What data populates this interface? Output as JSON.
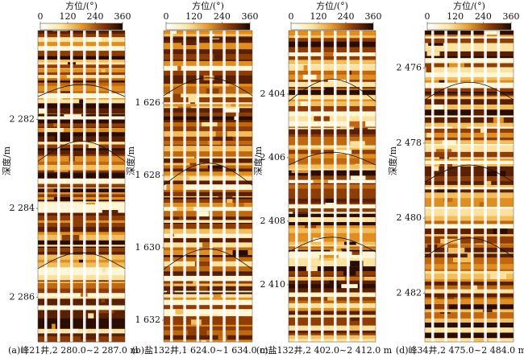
{
  "panels": [
    {
      "colorbar": {
        "title": "方位/(°)",
        "xlim": [
          0,
          360
        ],
        "xticks": [
          0,
          120,
          240,
          360
        ]
      },
      "depth_axis": {
        "label": "深度/m",
        "ylim": [
          2280,
          2287
        ],
        "yticks": [
          {
            "value": 2282,
            "label": "2 282"
          },
          {
            "value": 2284,
            "label": "2 284"
          },
          {
            "value": 2286,
            "label": "2 286"
          }
        ]
      },
      "caption": "(a)峰21井,2 280.0~2 287.0 m"
    },
    {
      "colorbar": {
        "title": "方位/(°)",
        "xlim": [
          0,
          360
        ],
        "xticks": [
          0,
          120,
          240,
          360
        ]
      },
      "depth_axis": {
        "label": "深度/m",
        "ylim": [
          1624,
          1632.6
        ],
        "yticks": [
          {
            "value": 1626,
            "label": "1 626"
          },
          {
            "value": 1628,
            "label": "1 628"
          },
          {
            "value": 1630,
            "label": "1 630"
          },
          {
            "value": 1632,
            "label": "1 632"
          }
        ]
      },
      "caption": "(b)盐132井,1 624.0~1 634.0 m"
    },
    {
      "colorbar": {
        "title": "方位/(°)",
        "xlim": [
          0,
          360
        ],
        "xticks": [
          0,
          120,
          240,
          360
        ]
      },
      "depth_axis": {
        "label": "深度/m",
        "ylim": [
          2402,
          2411.8
        ],
        "yticks": [
          {
            "value": 2404,
            "label": "2 404"
          },
          {
            "value": 2406,
            "label": "2 406"
          },
          {
            "value": 2408,
            "label": "2 408"
          },
          {
            "value": 2410,
            "label": "2 410"
          }
        ]
      },
      "caption": "(c)盐132井,2 402.0~2 412.0 m"
    },
    {
      "colorbar": {
        "title": "方位/(°)",
        "xlim": [
          0,
          360
        ],
        "xticks": [
          0,
          120,
          240,
          360
        ]
      },
      "depth_axis": {
        "label": "深度/m",
        "ylim": [
          2475,
          2483.3
        ],
        "yticks": [
          {
            "value": 2476,
            "label": "2 476"
          },
          {
            "value": 2478,
            "label": "2 478"
          },
          {
            "value": 2480,
            "label": "2 480"
          },
          {
            "value": 2482,
            "label": "2 482"
          }
        ]
      },
      "caption": "(d)峰34井,2 475.0~2 484.0 m"
    }
  ]
}
